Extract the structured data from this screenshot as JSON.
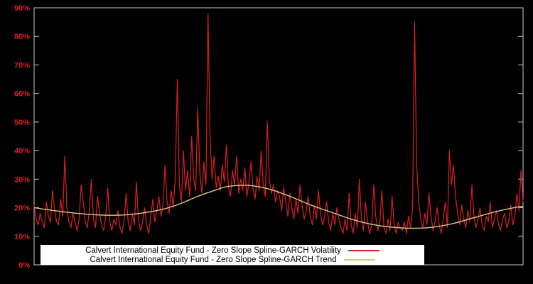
{
  "colors": {
    "background": "#000000",
    "frame": "#c8c8c8",
    "tick_label": "#d91f26",
    "legend_background": "#ffffff",
    "legend_text": "#000000"
  },
  "chart_data": {
    "type": "line",
    "title": "",
    "xlabel": "",
    "ylabel": "",
    "grid": false,
    "legend_position": "bottom-center-inside",
    "ylim": [
      0,
      90
    ],
    "yticks": [
      0,
      10,
      20,
      30,
      40,
      50,
      60,
      70,
      80,
      90
    ],
    "ytick_labels": [
      "0%",
      "10%",
      "20%",
      "30%",
      "40%",
      "50%",
      "60%",
      "70%",
      "80%",
      "90%"
    ],
    "x_range": [
      0,
      239
    ],
    "series": [
      {
        "name": "Calvert International Equity Fund - Zero Slope Spline-GARCH Volatility",
        "color": "#d91f26",
        "style": "jagged",
        "values": [
          21,
          16,
          14,
          18,
          15,
          13,
          22,
          17,
          15,
          26,
          19,
          15,
          14,
          23,
          17,
          38,
          20,
          15,
          13,
          18,
          15,
          12,
          16,
          28,
          22,
          15,
          13,
          19,
          30,
          16,
          13,
          24,
          18,
          14,
          12,
          17,
          27,
          15,
          12,
          16,
          14,
          19,
          13,
          11,
          16,
          25,
          15,
          12,
          18,
          14,
          29,
          16,
          12,
          15,
          20,
          14,
          11,
          17,
          23,
          15,
          19,
          24,
          17,
          21,
          35,
          22,
          18,
          26,
          20,
          30,
          65,
          28,
          22,
          40,
          26,
          33,
          24,
          45,
          30,
          26,
          55,
          32,
          25,
          36,
          28,
          88,
          45,
          30,
          38,
          27,
          31,
          26,
          35,
          29,
          42,
          27,
          24,
          33,
          28,
          38,
          25,
          30,
          26,
          34,
          24,
          29,
          36,
          27,
          23,
          31,
          26,
          40,
          28,
          24,
          50,
          30,
          25,
          28,
          22,
          26,
          24,
          19,
          27,
          22,
          17,
          25,
          20,
          16,
          23,
          18,
          28,
          21,
          16,
          19,
          24,
          17,
          14,
          21,
          16,
          26,
          18,
          14,
          17,
          22,
          15,
          12,
          18,
          14,
          20,
          16,
          13,
          11,
          16,
          12,
          25,
          14,
          11,
          18,
          13,
          30,
          16,
          12,
          22,
          15,
          11,
          14,
          28,
          17,
          12,
          15,
          26,
          13,
          11,
          16,
          12,
          24,
          14,
          11,
          15,
          13,
          12,
          15,
          11,
          17,
          13,
          20,
          85,
          35,
          22,
          16,
          13,
          18,
          14,
          25,
          17,
          12,
          15,
          20,
          14,
          11,
          16,
          22,
          13,
          40,
          28,
          35,
          24,
          18,
          14,
          21,
          16,
          13,
          19,
          15,
          28,
          17,
          13,
          16,
          20,
          14,
          12,
          17,
          15,
          22,
          13,
          16,
          19,
          14,
          12,
          16,
          18,
          13,
          15,
          21,
          14,
          17,
          25,
          19,
          33,
          22
        ]
      },
      {
        "name": "Calvert International Equity Fund - Zero Slope Spline-GARCH Trend",
        "color": "#d8cc7d",
        "style": "smooth",
        "x": [
          0,
          15,
          30,
          45,
          60,
          70,
          80,
          90,
          95,
          105,
          115,
          125,
          135,
          145,
          155,
          165,
          175,
          185,
          195,
          205,
          215,
          225,
          233,
          239
        ],
        "values": [
          20,
          18.5,
          17.5,
          17.5,
          19,
          21,
          24,
          26.5,
          27.5,
          27.8,
          26.5,
          24,
          21,
          18.5,
          16,
          14.2,
          13.2,
          12.8,
          13.2,
          14.5,
          16.5,
          18.5,
          19.8,
          20.5
        ]
      }
    ]
  }
}
